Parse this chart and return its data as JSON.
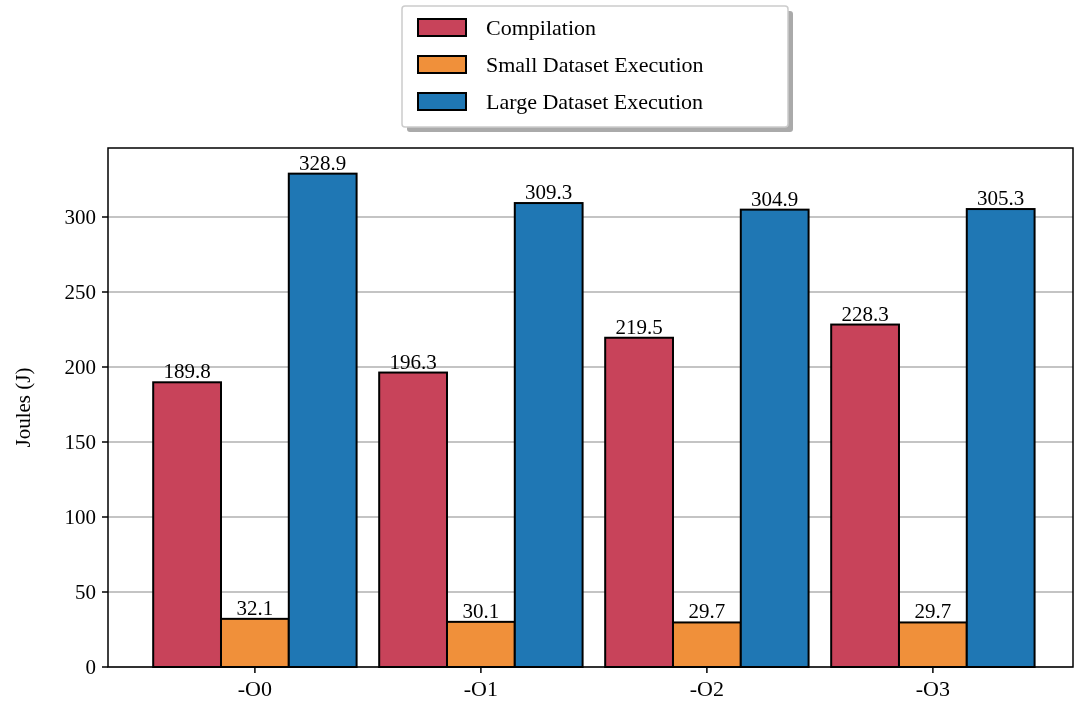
{
  "chart_data": {
    "type": "bar",
    "ylabel": "Joules (J)",
    "categories": [
      "-O0",
      "-O1",
      "-O2",
      "-O3"
    ],
    "series": [
      {
        "name": "Compilation",
        "color": "#c8435a",
        "values": [
          189.8,
          196.3,
          219.5,
          228.3
        ]
      },
      {
        "name": "Small Dataset Execution",
        "color": "#f0903a",
        "values": [
          32.1,
          30.1,
          29.7,
          29.7
        ]
      },
      {
        "name": "Large Dataset Execution",
        "color": "#1f77b4",
        "values": [
          328.9,
          309.3,
          304.9,
          305.3
        ]
      }
    ],
    "ylim": [
      0,
      346
    ],
    "yticks": [
      0,
      50,
      100,
      150,
      200,
      250,
      300
    ],
    "grid": "y",
    "legend": "top",
    "data_labels": true
  }
}
